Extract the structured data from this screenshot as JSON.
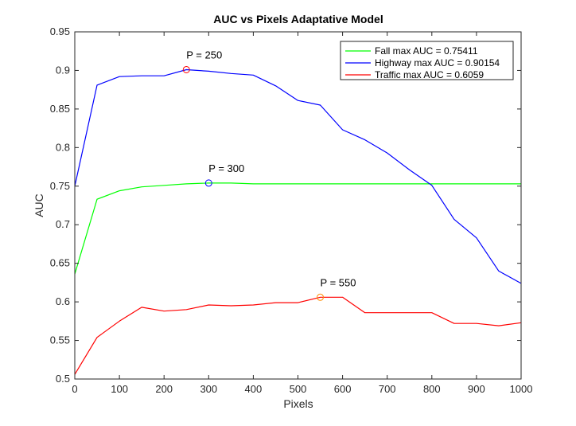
{
  "chart_data": {
    "type": "line",
    "title": "AUC vs Pixels Adaptative Model",
    "xlabel": "Pixels",
    "ylabel": "AUC",
    "xlim": [
      0,
      1000
    ],
    "ylim": [
      0.5,
      0.95
    ],
    "xticks": [
      "0",
      "100",
      "200",
      "300",
      "400",
      "500",
      "600",
      "700",
      "800",
      "900",
      "1000"
    ],
    "yticks": [
      "0.5",
      "0.55",
      "0.6",
      "0.65",
      "0.7",
      "0.75",
      "0.8",
      "0.85",
      "0.9",
      "0.95"
    ],
    "grid": false,
    "legend_position": "top-right",
    "series": [
      {
        "name": "Fall max AUC = 0.75411",
        "color": "#00ff00",
        "x": [
          0,
          50,
          100,
          150,
          200,
          250,
          300,
          350,
          400,
          450,
          500,
          550,
          600,
          650,
          700,
          750,
          800,
          850,
          900,
          950,
          1000
        ],
        "y": [
          0.636,
          0.733,
          0.744,
          0.749,
          0.751,
          0.753,
          0.754,
          0.754,
          0.753,
          0.753,
          0.753,
          0.753,
          0.753,
          0.753,
          0.753,
          0.753,
          0.753,
          0.753,
          0.753,
          0.753,
          0.753
        ],
        "max_marker": {
          "x": 300,
          "y": 0.754,
          "label": "P = 300",
          "color": "#0000ff"
        }
      },
      {
        "name": "Highway max AUC = 0.90154",
        "color": "#0000ff",
        "x": [
          0,
          50,
          100,
          150,
          200,
          250,
          300,
          350,
          400,
          450,
          500,
          550,
          600,
          650,
          700,
          750,
          800,
          850,
          900,
          950,
          1000
        ],
        "y": [
          0.75,
          0.881,
          0.892,
          0.893,
          0.893,
          0.901,
          0.899,
          0.896,
          0.894,
          0.88,
          0.861,
          0.855,
          0.823,
          0.81,
          0.793,
          0.771,
          0.751,
          0.707,
          0.683,
          0.64,
          0.624
        ],
        "max_marker": {
          "x": 250,
          "y": 0.901,
          "label": "P = 250",
          "color": "#ff0000"
        }
      },
      {
        "name": "Traffic max AUC = 0.6059",
        "color": "#ff0000",
        "x": [
          0,
          50,
          100,
          150,
          200,
          250,
          300,
          350,
          400,
          450,
          500,
          550,
          600,
          650,
          700,
          750,
          800,
          850,
          900,
          950,
          1000
        ],
        "y": [
          0.506,
          0.554,
          0.575,
          0.593,
          0.588,
          0.59,
          0.596,
          0.595,
          0.596,
          0.599,
          0.599,
          0.606,
          0.606,
          0.586,
          0.586,
          0.586,
          0.586,
          0.572,
          0.572,
          0.569,
          0.573
        ],
        "max_marker": {
          "x": 550,
          "y": 0.606,
          "label": "P = 550",
          "color": "#ff8c00"
        }
      }
    ]
  }
}
